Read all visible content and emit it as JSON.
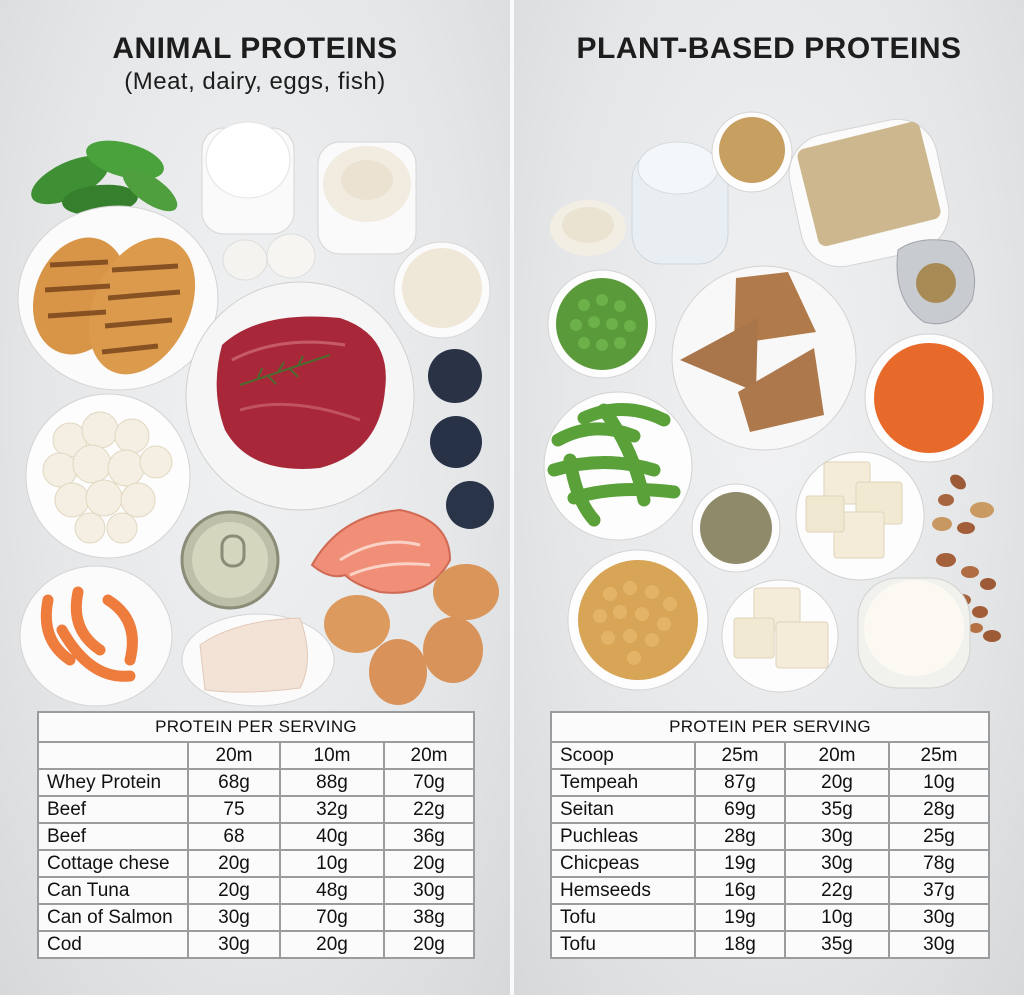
{
  "left": {
    "title": "ANIMAL PROTEINS",
    "subtitle": "(Meat, dairy, eggs, fish)",
    "table": {
      "caption": "PROTEIN PER SERVING",
      "columns": [
        "",
        "20m",
        "10m",
        "20m"
      ],
      "rows": [
        [
          "Whey Protein",
          "68g",
          "88g",
          "70g"
        ],
        [
          "Beef",
          "75",
          "32g",
          "22g"
        ],
        [
          "Beef",
          "68",
          "40g",
          "36g"
        ],
        [
          "Cottage chese",
          "20g",
          "10g",
          "20g"
        ],
        [
          "Can Tuna",
          "20g",
          "48g",
          "30g"
        ],
        [
          "Can of Salmon",
          "30g",
          "70g",
          "38g"
        ],
        [
          "Cod",
          "30g",
          "20g",
          "20g"
        ]
      ]
    }
  },
  "right": {
    "title": "PLANT-BASED PROTEINS",
    "table": {
      "caption": "PROTEIN PER SERVING",
      "columns": [
        "Scoop",
        "25m",
        "20m",
        "25m"
      ],
      "rows": [
        [
          "Tempeah",
          "87g",
          "20g",
          "10g"
        ],
        [
          "Seitan",
          "69g",
          "35g",
          "28g"
        ],
        [
          "Puchleas",
          "28g",
          "30g",
          "25g"
        ],
        [
          "Chicpeas",
          "19g",
          "30g",
          "78g"
        ],
        [
          "Hemseeds",
          "16g",
          "22g",
          "37g"
        ],
        [
          "Tofu",
          "19g",
          "10g",
          "30g"
        ],
        [
          "Tofu",
          "18g",
          "35g",
          "30g"
        ]
      ]
    }
  },
  "colors": {
    "chicken": "#d89447",
    "steak": "#a8283a",
    "salmon": "#f08e78",
    "egg": "#d9955a",
    "peas": "#5a9a3a",
    "lentils": "#e86a2a",
    "chickpeas": "#d8a456",
    "tofu": "#f4ecd8",
    "tempeh": "#cdb78e"
  }
}
